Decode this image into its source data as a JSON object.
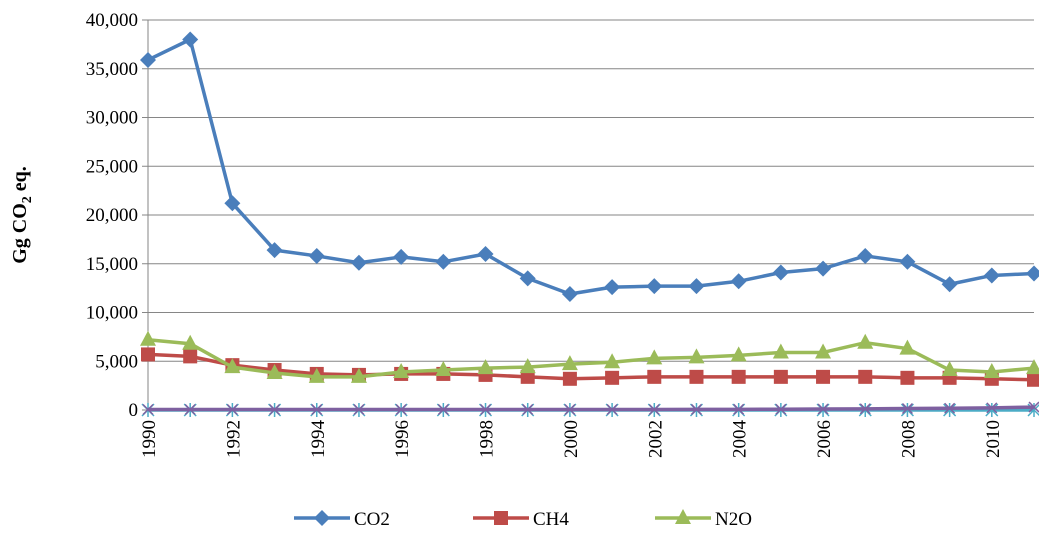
{
  "chart_data": {
    "type": "line",
    "title": "",
    "xlabel": "",
    "ylabel": "Gg CO2 eq.",
    "ylabel_parts": {
      "main": "Gg CO",
      "sub": "2",
      "tail": " eq."
    },
    "x": [
      1990,
      1991,
      1992,
      1993,
      1994,
      1995,
      1996,
      1997,
      1998,
      1999,
      2000,
      2001,
      2002,
      2003,
      2004,
      2005,
      2006,
      2007,
      2008,
      2009,
      2010,
      2011
    ],
    "x_tick_labels": [
      "1990",
      "1992",
      "1994",
      "1996",
      "1998",
      "2000",
      "2002",
      "2004",
      "2006",
      "2008",
      "2010"
    ],
    "ylim": [
      0,
      40000
    ],
    "y_tick_labels": [
      "0",
      "5,000",
      "10,000",
      "15,000",
      "20,000",
      "25,000",
      "30,000",
      "35,000",
      "40,000"
    ],
    "grid": "horizontal",
    "legend_position": "bottom",
    "series": [
      {
        "name": "CO2",
        "color": "#4a7ebb",
        "marker": "diamond",
        "values": [
          35900,
          38000,
          21200,
          16400,
          15800,
          15100,
          15700,
          15200,
          16000,
          13500,
          11900,
          12600,
          12700,
          12700,
          13200,
          14100,
          14500,
          15800,
          15200,
          12900,
          13800,
          14000
        ]
      },
      {
        "name": "CH4",
        "color": "#be4b48",
        "marker": "square",
        "values": [
          5700,
          5500,
          4600,
          4100,
          3700,
          3600,
          3700,
          3700,
          3600,
          3400,
          3200,
          3300,
          3400,
          3400,
          3400,
          3400,
          3400,
          3400,
          3300,
          3300,
          3200,
          3100
        ]
      },
      {
        "name": "N2O",
        "color": "#9bbb59",
        "marker": "triangle",
        "values": [
          7200,
          6800,
          4400,
          3800,
          3400,
          3400,
          3900,
          4100,
          4300,
          4400,
          4700,
          4900,
          5300,
          5400,
          5600,
          5900,
          5900,
          6900,
          6300,
          4100,
          3900,
          4300
        ]
      },
      {
        "name": "",
        "color": "#7e60a0",
        "marker": "x",
        "values": [
          50,
          50,
          50,
          50,
          50,
          50,
          50,
          50,
          50,
          50,
          50,
          50,
          50,
          60,
          70,
          80,
          100,
          120,
          150,
          180,
          220,
          300
        ]
      },
      {
        "name": "",
        "color": "#4bacc6",
        "marker": "star",
        "values": [
          0,
          0,
          0,
          0,
          0,
          0,
          0,
          0,
          0,
          0,
          0,
          0,
          0,
          0,
          0,
          0,
          0,
          0,
          0,
          0,
          0,
          0
        ]
      }
    ]
  }
}
